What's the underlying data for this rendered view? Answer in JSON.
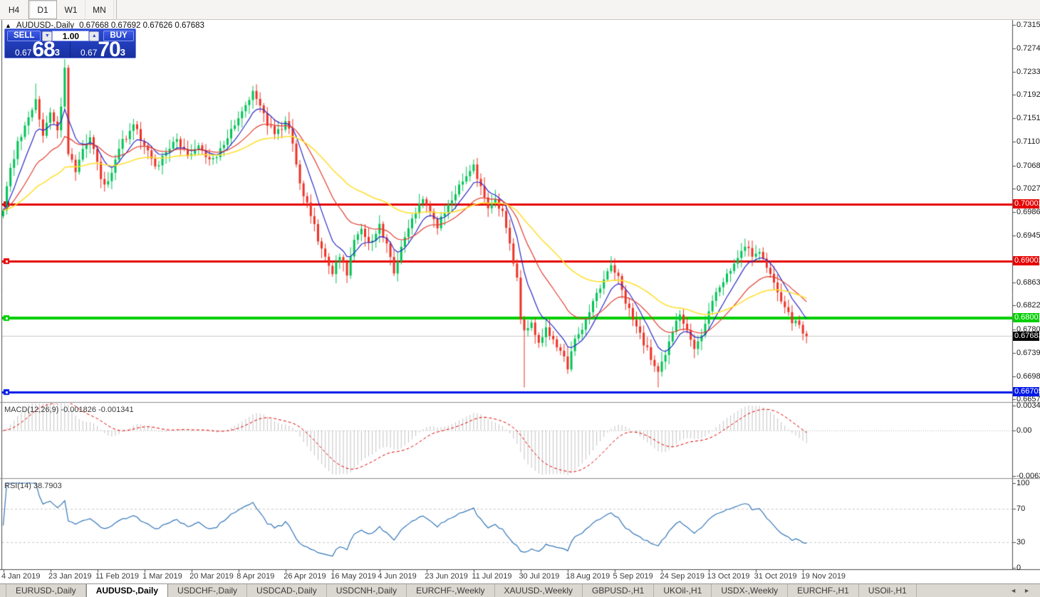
{
  "toolbar": {
    "timeframes": [
      "H4",
      "D1",
      "W1",
      "MN"
    ],
    "active": "D1"
  },
  "chart_header": {
    "collapse_icon": "▲",
    "symbol": "AUDUSD-,Daily",
    "ohlc_text": "0.67668 0.67692 0.67626 0.67683"
  },
  "trade_panel": {
    "sell_label": "SELL",
    "buy_label": "BUY",
    "volume": "1.00",
    "volume_down_icon": "▼",
    "volume_up_icon": "▲",
    "sell_price": {
      "prefix": "0.67",
      "big": "68",
      "sup": "3"
    },
    "buy_price": {
      "prefix": "0.67",
      "big": "70",
      "sup": "3"
    }
  },
  "price_axis": {
    "ticks": [
      "0.73150",
      "0.72740",
      "0.72330",
      "0.71920",
      "0.71510",
      "0.71100",
      "0.70680",
      "0.70270",
      "0.69860",
      "0.69450",
      "0.68630",
      "0.68220",
      "0.67800",
      "0.67390",
      "0.66980",
      "0.66570"
    ]
  },
  "levels": [
    {
      "value": "0.70002",
      "price": 0.70002,
      "color": "#e60000",
      "kind": "resistance"
    },
    {
      "value": "0.69002",
      "price": 0.69002,
      "color": "#e60000",
      "kind": "resistance"
    },
    {
      "value": "0.68001",
      "price": 0.68001,
      "color": "#00cf00",
      "kind": "support"
    },
    {
      "value": "0.66705",
      "price": 0.66705,
      "color": "#0018e8",
      "kind": "support"
    }
  ],
  "current_price": {
    "value": "0.67683",
    "price": 0.67683,
    "bg": "#000000",
    "fg": "#ffffff"
  },
  "macd_panel": {
    "label": "MACD(12,26,9) -0.001826 -0.001341",
    "axis": [
      {
        "text": "0.00349",
        "value": 0.00349
      },
      {
        "text": "0.00",
        "value": 0.0
      },
      {
        "text": "-0.00637",
        "value": -0.00637
      }
    ]
  },
  "rsi_panel": {
    "label": "RSI(14) 38.7903",
    "axis": [
      {
        "text": "100",
        "value": 100
      },
      {
        "text": "70",
        "value": 70
      },
      {
        "text": "30",
        "value": 30
      },
      {
        "text": "0",
        "value": 0
      }
    ],
    "dashed_levels": [
      70,
      30
    ]
  },
  "date_axis": [
    "4 Jan 2019",
    "23 Jan 2019",
    "11 Feb 2019",
    "1 Mar 2019",
    "20 Mar 2019",
    "8 Apr 2019",
    "26 Apr 2019",
    "16 May 2019",
    "4 Jun 2019",
    "23 Jun 2019",
    "11 Jul 2019",
    "30 Jul 2019",
    "18 Aug 2019",
    "5 Sep 2019",
    "24 Sep 2019",
    "13 Oct 2019",
    "31 Oct 2019",
    "19 Nov 2019"
  ],
  "tabs": {
    "items": [
      "EURUSD-,Daily",
      "AUDUSD-,Daily",
      "USDCHF-,Daily",
      "USDCAD-,Daily",
      "USDCNH-,Daily",
      "EURCHF-,Weekly",
      "XAUUSD-,Weekly",
      "GBPUSD-,H1",
      "UKOil-,H1",
      "USDX-,Weekly",
      "EURCHF-,H1",
      "USOil-,H1"
    ],
    "active": "AUDUSD-,Daily",
    "scroll_left_icon": "◄",
    "scroll_right_icon": "►"
  },
  "colors": {
    "candle_up": "#00c455",
    "candle_down": "#ee3124",
    "ma_fast": "#2929c8",
    "ma_mid": "#e23b2e",
    "ma_slow": "#ffe032",
    "macd_histogram": "#c4c4c4",
    "macd_signal": "#e00000",
    "rsi_line": "#3376b8",
    "level_gray": "#c8c8c8"
  },
  "chart_data": {
    "type": "candlestick",
    "symbol": "AUDUSD",
    "timeframe": "Daily",
    "title": "AUDUSD-,Daily",
    "current_bar": {
      "open": 0.67668,
      "high": 0.67692,
      "low": 0.67626,
      "close": 0.67683
    },
    "visible_price_range": [
      0.6657,
      0.733
    ],
    "candle_count": 223,
    "horizontal_lines": [
      {
        "price": 0.70002,
        "color": "#e60000",
        "width": 3
      },
      {
        "price": 0.69002,
        "color": "#e60000",
        "width": 3
      },
      {
        "price": 0.68001,
        "color": "#00cf00",
        "width": 4
      },
      {
        "price": 0.66705,
        "color": "#0018e8",
        "width": 3
      },
      {
        "price": 0.67683,
        "color": "#c8c8c8",
        "width": 1
      }
    ],
    "moving_averages": [
      {
        "period": 8,
        "color": "#2929c8"
      },
      {
        "period": 21,
        "color": "#e23b2e"
      },
      {
        "period": 50,
        "color": "#ffe032"
      }
    ],
    "price_path_anchors": [
      [
        0,
        0.6995
      ],
      [
        2,
        0.706
      ],
      [
        4,
        0.711
      ],
      [
        7,
        0.715
      ],
      [
        9,
        0.7185
      ],
      [
        11,
        0.712
      ],
      [
        13,
        0.716
      ],
      [
        15,
        0.7125
      ],
      [
        16,
        0.717
      ],
      [
        17,
        0.7245
      ],
      [
        18,
        0.7085
      ],
      [
        20,
        0.706
      ],
      [
        22,
        0.7095
      ],
      [
        24,
        0.7115
      ],
      [
        26,
        0.707
      ],
      [
        28,
        0.703
      ],
      [
        30,
        0.706
      ],
      [
        33,
        0.711
      ],
      [
        36,
        0.714
      ],
      [
        39,
        0.7105
      ],
      [
        42,
        0.7065
      ],
      [
        45,
        0.709
      ],
      [
        48,
        0.7115
      ],
      [
        51,
        0.7085
      ],
      [
        54,
        0.7105
      ],
      [
        57,
        0.7075
      ],
      [
        60,
        0.7095
      ],
      [
        63,
        0.713
      ],
      [
        66,
        0.716
      ],
      [
        69,
        0.7195
      ],
      [
        72,
        0.7155
      ],
      [
        75,
        0.712
      ],
      [
        78,
        0.7145
      ],
      [
        80,
        0.711
      ],
      [
        82,
        0.704
      ],
      [
        84,
        0.7
      ],
      [
        86,
        0.696
      ],
      [
        88,
        0.692
      ],
      [
        91,
        0.688
      ],
      [
        93,
        0.691
      ],
      [
        95,
        0.688
      ],
      [
        97,
        0.6935
      ],
      [
        99,
        0.696
      ],
      [
        101,
        0.693
      ],
      [
        104,
        0.6965
      ],
      [
        106,
        0.6925
      ],
      [
        108,
        0.688
      ],
      [
        110,
        0.692
      ],
      [
        113,
        0.6975
      ],
      [
        116,
        0.701
      ],
      [
        118,
        0.699
      ],
      [
        120,
        0.696
      ],
      [
        122,
        0.6985
      ],
      [
        124,
        0.701
      ],
      [
        127,
        0.704
      ],
      [
        130,
        0.707
      ],
      [
        132,
        0.703
      ],
      [
        134,
        0.699
      ],
      [
        136,
        0.701
      ],
      [
        138,
        0.6985
      ],
      [
        140,
        0.693
      ],
      [
        142,
        0.687
      ],
      [
        143,
        0.68
      ],
      [
        144,
        0.6775
      ],
      [
        146,
        0.679
      ],
      [
        148,
        0.6755
      ],
      [
        150,
        0.6785
      ],
      [
        152,
        0.676
      ],
      [
        154,
        0.674
      ],
      [
        156,
        0.6715
      ],
      [
        158,
        0.676
      ],
      [
        160,
        0.6785
      ],
      [
        162,
        0.681
      ],
      [
        164,
        0.6845
      ],
      [
        166,
        0.687
      ],
      [
        168,
        0.689
      ],
      [
        170,
        0.687
      ],
      [
        172,
        0.683
      ],
      [
        174,
        0.6795
      ],
      [
        176,
        0.677
      ],
      [
        178,
        0.6745
      ],
      [
        180,
        0.672
      ],
      [
        181,
        0.671
      ],
      [
        183,
        0.674
      ],
      [
        185,
        0.6775
      ],
      [
        187,
        0.6805
      ],
      [
        189,
        0.678
      ],
      [
        191,
        0.6745
      ],
      [
        193,
        0.6775
      ],
      [
        195,
        0.681
      ],
      [
        197,
        0.684
      ],
      [
        199,
        0.6865
      ],
      [
        201,
        0.6885
      ],
      [
        203,
        0.691
      ],
      [
        205,
        0.693
      ],
      [
        207,
        0.6905
      ],
      [
        209,
        0.692
      ],
      [
        211,
        0.6885
      ],
      [
        213,
        0.686
      ],
      [
        215,
        0.6835
      ],
      [
        217,
        0.681
      ],
      [
        218,
        0.6785
      ],
      [
        219,
        0.68
      ],
      [
        220,
        0.679
      ],
      [
        221,
        0.6775
      ],
      [
        222,
        0.67683
      ]
    ],
    "wick_overrides": {
      "9": {
        "high": 0.7212
      },
      "17": {
        "high": 0.7255
      },
      "69": {
        "high": 0.7208
      },
      "144": {
        "low": 0.6678
      },
      "156": {
        "low": 0.6702
      },
      "181": {
        "low": 0.6678
      }
    },
    "macd": {
      "fast": 12,
      "slow": 26,
      "signal": 9,
      "value": -0.001826,
      "signal_value": -0.001341,
      "axis_max": 0.00349,
      "axis_min": -0.00637
    },
    "rsi": {
      "period": 14,
      "value": 38.7903,
      "overbought": 70,
      "oversold": 30
    },
    "x_tick_dates": [
      "4 Jan 2019",
      "23 Jan 2019",
      "11 Feb 2019",
      "1 Mar 2019",
      "20 Mar 2019",
      "8 Apr 2019",
      "26 Apr 2019",
      "16 May 2019",
      "4 Jun 2019",
      "23 Jun 2019",
      "11 Jul 2019",
      "30 Jul 2019",
      "18 Aug 2019",
      "5 Sep 2019",
      "24 Sep 2019",
      "13 Oct 2019",
      "31 Oct 2019",
      "19 Nov 2019"
    ],
    "bars_per_x_tick": 13
  }
}
